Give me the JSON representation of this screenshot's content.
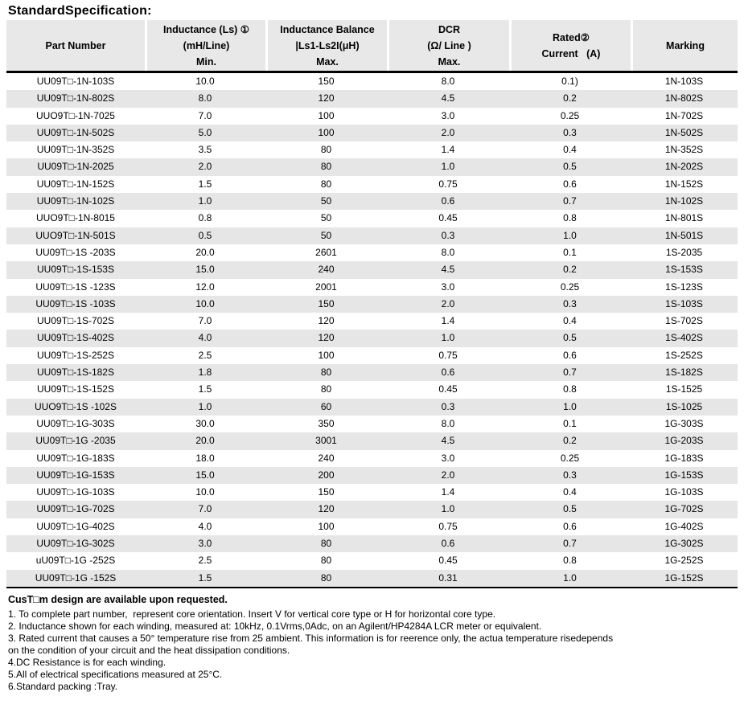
{
  "page": {
    "title": "StandardSpecification:"
  },
  "table": {
    "columns": [
      {
        "id": "part-number",
        "lines": [
          "Part Number"
        ]
      },
      {
        "id": "inductance",
        "lines": [
          "Inductance (Ls) ①",
          "(mH/Line)",
          "Min."
        ]
      },
      {
        "id": "inductance-balance",
        "lines": [
          "Inductance Balance",
          "|Ls1-Ls2I(μH)",
          "Max."
        ]
      },
      {
        "id": "dcr",
        "lines": [
          "DCR",
          "(Ω/ Line )",
          "Max."
        ]
      },
      {
        "id": "rated-current",
        "lines": [
          "Rated②",
          "Current   (A)"
        ]
      },
      {
        "id": "marking",
        "lines": [
          "Marking"
        ]
      }
    ],
    "rows": [
      [
        "UU09T□-1N-103S",
        "10.0",
        "150",
        "8.0",
        "0.1)",
        "1N-103S"
      ],
      [
        "UU09T□-1N-802S",
        "8.0",
        "120",
        "4.5",
        "0.2",
        "1N-802S"
      ],
      [
        "UUO9T□-1N-7025",
        "7.0",
        "100",
        "3.0",
        "0.25",
        "1N-702S"
      ],
      [
        "UU09T□-1N-502S",
        "5.0",
        "100",
        "2.0",
        "0.3",
        "1N-502S"
      ],
      [
        "UU09T□-1N-352S",
        "3.5",
        "80",
        "1.4",
        "0.4",
        "1N-352S"
      ],
      [
        "UU09T□-1N-2025",
        "2.0",
        "80",
        "1.0",
        "0.5",
        "1N-202S"
      ],
      [
        "UU09T□-1N-152S",
        "1.5",
        "80",
        "0.75",
        "0.6",
        "1N-152S"
      ],
      [
        "UU09T□-1N-102S",
        "1.0",
        "50",
        "0.6",
        "0.7",
        "1N-102S"
      ],
      [
        "UUO9T□-1N-8015",
        "0.8",
        "50",
        "0.45",
        "0.8",
        "1N-801S"
      ],
      [
        "UUO9T□-1N-501S",
        "0.5",
        "50",
        "0.3",
        "1.0",
        "1N-501S"
      ],
      [
        "UU09T□-1S -203S",
        "20.0",
        "2601",
        "8.0",
        "0.1",
        "1S-2035"
      ],
      [
        "UU09T□-1S-153S",
        "15.0",
        "240",
        "4.5",
        "0.2",
        "1S-153S"
      ],
      [
        "UU09T□-1S -123S",
        "12.0",
        "2001",
        "3.0",
        "0.25",
        "1S-123S"
      ],
      [
        "UU09T□-1S -103S",
        "10.0",
        "150",
        "2.0",
        "0.3",
        "1S-103S"
      ],
      [
        "UU09T□-1S-702S",
        "7.0",
        "120",
        "1.4",
        "0.4",
        "1S-702S"
      ],
      [
        "UU09T□-1S-402S",
        "4.0",
        "120",
        "1.0",
        "0.5",
        "1S-402S"
      ],
      [
        "UU09T□-1S-252S",
        "2.5",
        "100",
        "0.75",
        "0.6",
        "1S-252S"
      ],
      [
        "UU09T□-1S-182S",
        "1.8",
        "80",
        "0.6",
        "0.7",
        "1S-182S"
      ],
      [
        "UU09T□-1S-152S",
        "1.5",
        "80",
        "0.45",
        "0.8",
        "1S-1525"
      ],
      [
        "UUO9T□-1S -102S",
        "1.0",
        "60",
        "0.3",
        "1.0",
        "1S-1025"
      ],
      [
        "UU09T□-1G-303S",
        "30.0",
        "350",
        "8.0",
        "0.1",
        "1G-303S"
      ],
      [
        "UU09T□-1G -2035",
        "20.0",
        "3001",
        "4.5",
        "0.2",
        "1G-203S"
      ],
      [
        "UU09T□-1G-183S",
        "18.0",
        "240",
        "3.0",
        "0.25",
        "1G-183S"
      ],
      [
        "UU09T□-1G-153S",
        "15.0",
        "200",
        "2.0",
        "0.3",
        "1G-153S"
      ],
      [
        "UU09T□-1G-103S",
        "10.0",
        "150",
        "1.4",
        "0.4",
        "1G-103S"
      ],
      [
        "UU09T□-1G-702S",
        "7.0",
        "120",
        "1.0",
        "0.5",
        "1G-702S"
      ],
      [
        "UU09T□-1G-402S",
        "4.0",
        "100",
        "0.75",
        "0.6",
        "1G-402S"
      ],
      [
        "UU09T□-1G-302S",
        "3.0",
        "80",
        "0.6",
        "0.7",
        "1G-302S"
      ],
      [
        "uU09T□-1G -252S",
        "2.5",
        "80",
        "0.45",
        "0.8",
        "1G-252S"
      ],
      [
        "UU09T□-1G -152S",
        "1.5",
        "80",
        "0.31",
        "1.0",
        "1G-152S"
      ]
    ]
  },
  "notes": {
    "bold_line": "CusT□m design are available upon requested.",
    "lines": [
      "1. To complete part number,  represent core orientation. Insert V for vertical core type or H for horizontal core type.",
      "2. Inductance shown for each winding, measured at: 10kHz, 0.1Vrms,0Adc, on an Agilent/HP4284A LCR meter or equivalent.",
      "3. Rated current that causes a 50° temperature rise from 25 ambient. This information is for reerence only, the actua temperature risedepends",
      "on the condition of your circuit and the heat dissipation conditions.",
      "4.DC Resistance is for each winding.",
      "5.All of electrical specifications measured at 25°C.",
      "6.Standard packing :Tray."
    ]
  },
  "colors": {
    "header_bg": "#e8e8e8",
    "stripe_bg": "#e6e6e6",
    "border_dark": "#000000"
  }
}
